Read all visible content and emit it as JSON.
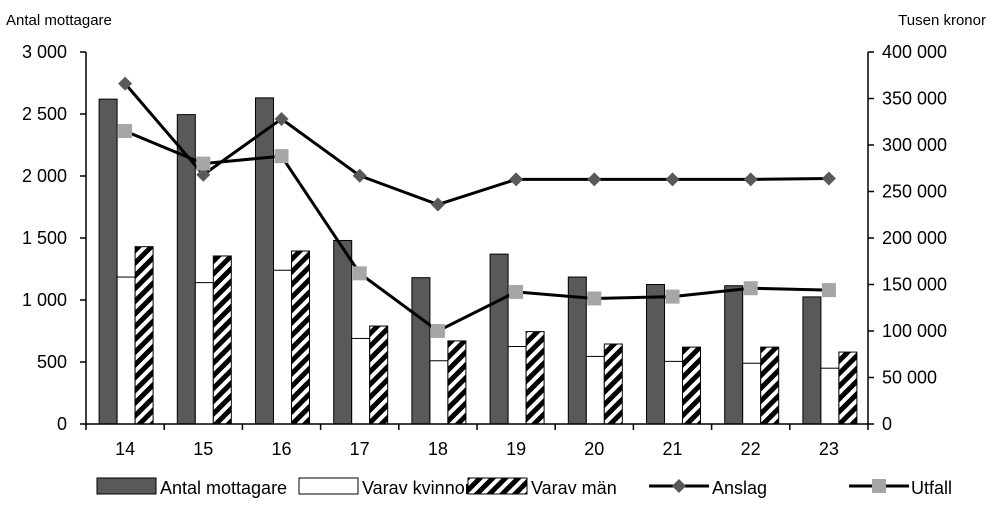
{
  "chart_data": {
    "type": "bar",
    "categories": [
      "14",
      "15",
      "16",
      "17",
      "18",
      "19",
      "20",
      "21",
      "22",
      "23"
    ],
    "left_axis": {
      "title": "Antal mottagare",
      "min": 0,
      "max": 3000,
      "step": 500,
      "tick_labels": [
        "0",
        "500",
        "1 000",
        "1 500",
        "2 000",
        "2 500",
        "3 000"
      ]
    },
    "right_axis": {
      "title": "Tusen kronor",
      "min": 0,
      "max": 400000,
      "step": 50000,
      "tick_labels": [
        "0",
        "50 000",
        "100 000",
        "150 000",
        "200 000",
        "250 000",
        "300 000",
        "350 000",
        "400 000"
      ]
    },
    "series": [
      {
        "name": "Antal mottagare",
        "kind": "bar",
        "axis": "left",
        "style": "solid",
        "color": "#595959",
        "values": [
          2620,
          2495,
          2630,
          1480,
          1180,
          1370,
          1185,
          1125,
          1115,
          1025
        ]
      },
      {
        "name": "Varav kvinnor",
        "kind": "bar",
        "axis": "left",
        "style": "outline",
        "color": "#ffffff",
        "values": [
          1185,
          1140,
          1240,
          690,
          510,
          625,
          545,
          505,
          490,
          450
        ]
      },
      {
        "name": "Varav män",
        "kind": "bar",
        "axis": "left",
        "style": "hatched",
        "color": "#000000",
        "values": [
          1430,
          1355,
          1395,
          790,
          670,
          745,
          645,
          620,
          620,
          580
        ]
      },
      {
        "name": "Anslag",
        "kind": "line",
        "axis": "right",
        "marker": "diamond",
        "color": "#000000",
        "marker_color": "#595959",
        "values": [
          366000,
          268000,
          328000,
          267000,
          236000,
          263000,
          263000,
          263000,
          263000,
          264000
        ]
      },
      {
        "name": "Utfall",
        "kind": "line",
        "axis": "right",
        "marker": "square",
        "color": "#000000",
        "marker_color": "#a6a6a6",
        "values": [
          315000,
          280000,
          288000,
          162000,
          100000,
          142000,
          135000,
          137000,
          146000,
          144000
        ]
      }
    ],
    "grid": false,
    "legend_position": "bottom"
  }
}
